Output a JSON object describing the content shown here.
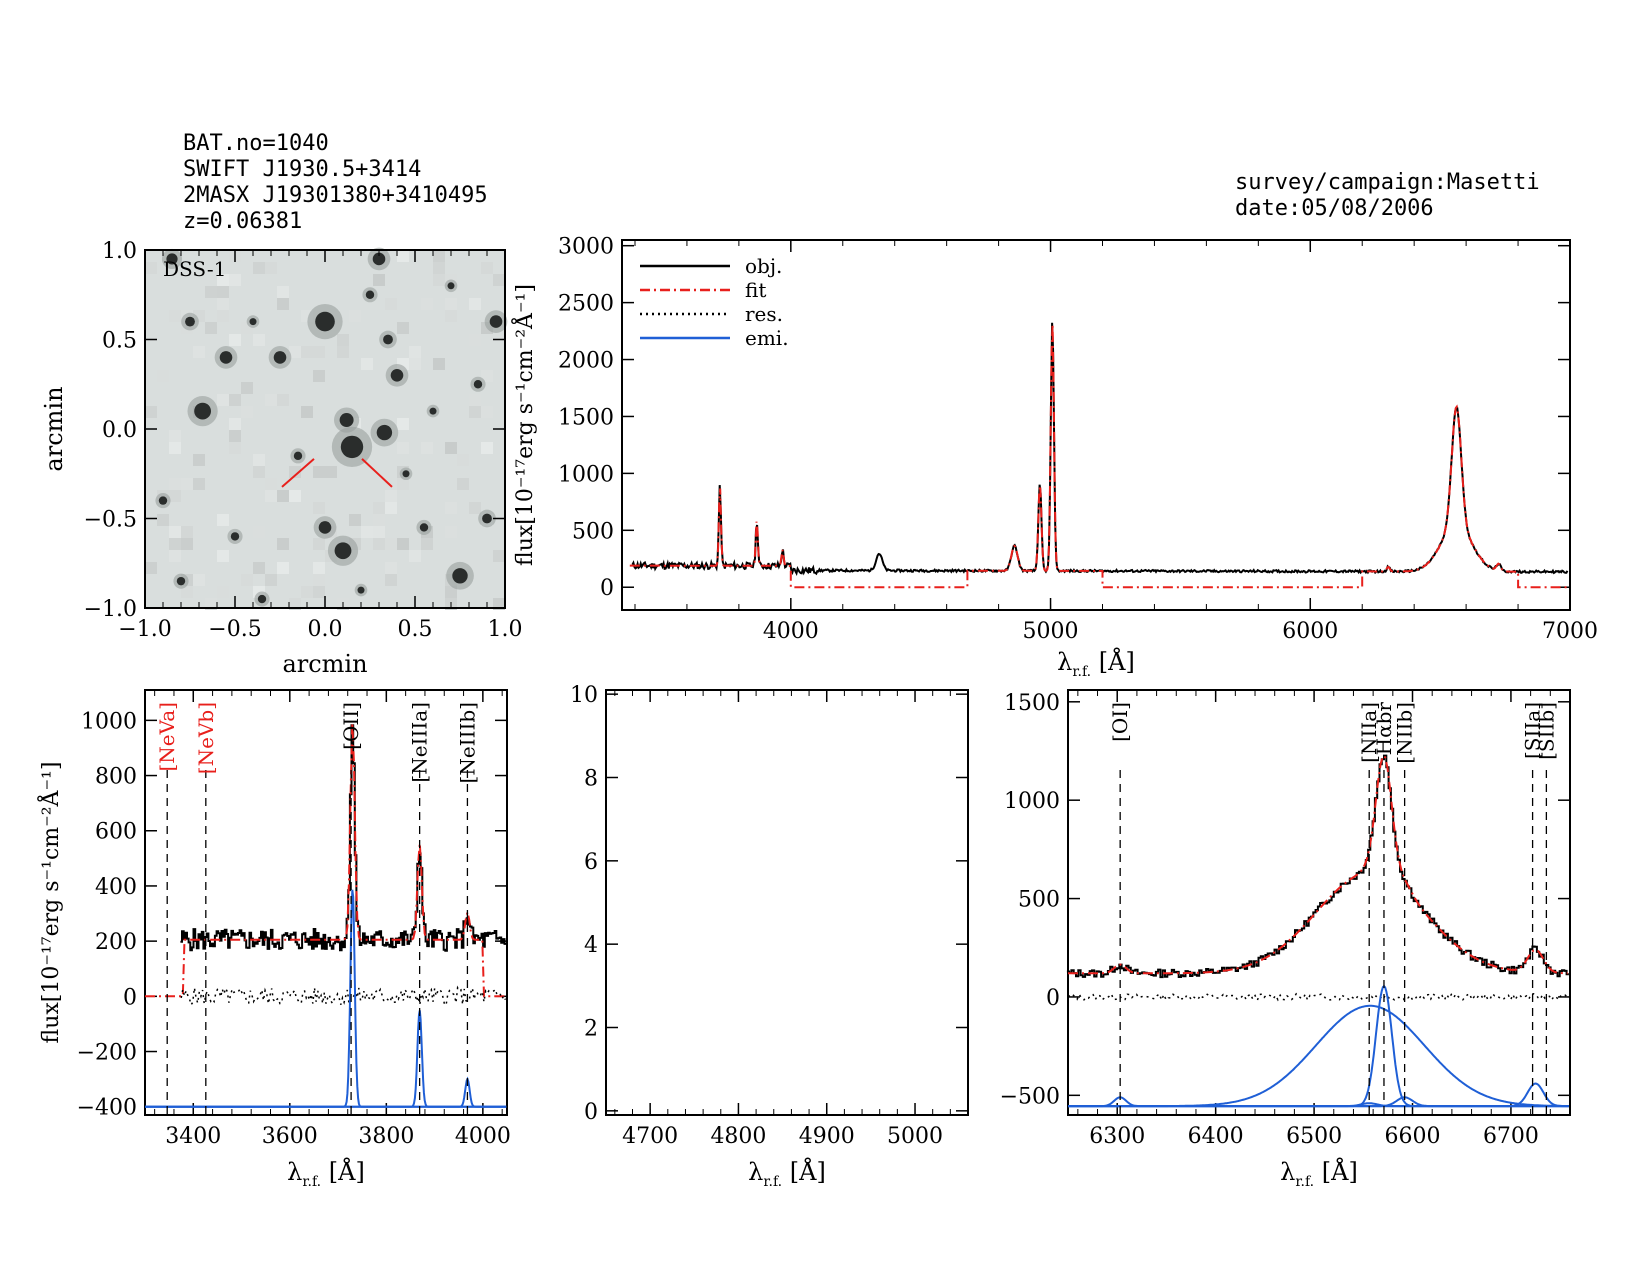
{
  "header_left": {
    "bat_no": "BAT.no=1040",
    "swift": "SWIFT J1930.5+3414",
    "twomass": "2MASX J19301380+3410495",
    "z": "z=0.06381"
  },
  "header_right": {
    "survey": "survey/campaign:Masetti",
    "date": "date:05/08/2006"
  },
  "colors": {
    "obj": "#000000",
    "fit": "#e8201c",
    "res": "#000000",
    "emi": "#1f5fd6",
    "label_red": "#e8201c"
  },
  "chart_data": [
    {
      "id": "dss",
      "type": "heatmap",
      "image_label": "DSS-1",
      "xlabel": "arcmin",
      "ylabel": "arcmin",
      "xlim": [
        -1.0,
        1.0
      ],
      "ylim": [
        -1.0,
        1.0
      ],
      "xticks": [
        "−1.0",
        "−0.5",
        "0.0",
        "0.5",
        "1.0"
      ],
      "yticks": [
        "−1.0",
        "−0.5",
        "0.0",
        "0.5",
        "1.0"
      ],
      "sources": [
        [
          0.0,
          0.6,
          1.4
        ],
        [
          0.15,
          -0.1,
          1.6
        ],
        [
          -0.68,
          0.1,
          1.2
        ],
        [
          0.4,
          0.3,
          0.9
        ],
        [
          0.33,
          -0.02,
          1.1
        ],
        [
          0.12,
          0.05,
          1.0
        ],
        [
          -0.25,
          0.4,
          0.9
        ],
        [
          -0.55,
          0.4,
          0.9
        ],
        [
          0.1,
          -0.68,
          1.2
        ],
        [
          0.0,
          -0.55,
          0.9
        ],
        [
          0.75,
          -0.82,
          1.1
        ],
        [
          0.95,
          0.6,
          0.9
        ],
        [
          0.3,
          0.95,
          0.9
        ],
        [
          -0.85,
          0.95,
          0.8
        ],
        [
          0.35,
          0.5,
          0.7
        ],
        [
          -0.75,
          0.6,
          0.7
        ],
        [
          0.55,
          -0.55,
          0.6
        ],
        [
          -0.5,
          -0.6,
          0.6
        ],
        [
          0.9,
          -0.5,
          0.7
        ],
        [
          -0.9,
          -0.4,
          0.6
        ],
        [
          0.6,
          0.1,
          0.5
        ],
        [
          -0.15,
          -0.15,
          0.6
        ],
        [
          0.25,
          0.75,
          0.6
        ],
        [
          -0.35,
          -0.95,
          0.6
        ],
        [
          0.85,
          0.25,
          0.6
        ],
        [
          -0.4,
          0.6,
          0.5
        ],
        [
          0.2,
          -0.9,
          0.5
        ],
        [
          0.7,
          0.8,
          0.5
        ],
        [
          -0.8,
          -0.85,
          0.6
        ],
        [
          0.45,
          -0.25,
          0.5
        ]
      ]
    },
    {
      "id": "full",
      "type": "line",
      "xlabel": "λ",
      "xlabel_sub": "r.f.",
      "xlabel_unit": "[Å]",
      "ylabel": "flux[10⁻¹⁷erg s⁻¹cm⁻²Å⁻¹]",
      "xlim": [
        3350,
        7000
      ],
      "ylim": [
        -200,
        3050
      ],
      "xticks": [
        4000,
        5000,
        6000,
        7000
      ],
      "yticks": [
        0,
        500,
        1000,
        1500,
        2000,
        2500,
        3000
      ],
      "legend": [
        "obj.",
        "fit",
        "res.",
        "emi."
      ],
      "legend_position": "top-left",
      "continuum": 150,
      "lines": [
        [
          3727,
          700,
          4
        ],
        [
          3869,
          400,
          4
        ],
        [
          3968,
          140,
          4
        ],
        [
          4340,
          150,
          12
        ],
        [
          4861,
          220,
          12
        ],
        [
          4959,
          760,
          6
        ],
        [
          5007,
          2200,
          6
        ],
        [
          6300,
          40,
          6
        ],
        [
          6563,
          1050,
          18
        ],
        [
          6563,
          400,
          60
        ],
        [
          6725,
          60,
          8
        ]
      ],
      "fit_steps": [
        [
          3380,
          4000,
          150
        ],
        [
          4000,
          4680,
          0
        ],
        [
          4680,
          5200,
          150
        ],
        [
          5200,
          6200,
          0
        ],
        [
          6200,
          6800,
          150
        ],
        [
          6800,
          7000,
          0
        ]
      ]
    },
    {
      "id": "blue",
      "type": "line",
      "xlabel": "λ",
      "xlabel_sub": "r.f.",
      "xlabel_unit": "[Å]",
      "ylabel": "flux[10⁻¹⁷erg s⁻¹cm⁻²Å⁻¹]",
      "xlim": [
        3300,
        4050
      ],
      "ylim": [
        -430,
        1110
      ],
      "xticks": [
        3400,
        3600,
        3800,
        4000
      ],
      "yticks": [
        -400,
        -200,
        0,
        200,
        400,
        600,
        800,
        1000
      ],
      "markers": [
        {
          "label": "[NeVa]",
          "x": 3346,
          "color": "red"
        },
        {
          "label": "[NeVb]",
          "x": 3426,
          "color": "red"
        },
        {
          "label": "[OII]",
          "x": 3727,
          "color": "black"
        },
        {
          "label": "[NeIIIa]",
          "x": 3869,
          "color": "black"
        },
        {
          "label": "[NeIIIb]",
          "x": 3968,
          "color": "black"
        }
      ],
      "continuum": 205,
      "emission": [
        [
          3730,
          790,
          4.5
        ],
        [
          3869,
          350,
          4.5
        ],
        [
          3968,
          100,
          4.5
        ]
      ],
      "emi_base": -400,
      "fit_range": [
        3380,
        4000
      ]
    },
    {
      "id": "hbeta",
      "type": "line",
      "xlabel": "λ",
      "xlabel_sub": "r.f.",
      "xlabel_unit": "[Å]",
      "xlim": [
        4650,
        5060
      ],
      "ylim": [
        -0.1,
        10.1
      ],
      "xticks": [
        4700,
        4800,
        4900,
        5000
      ],
      "yticks": [
        0,
        2,
        4,
        6,
        8,
        10
      ]
    },
    {
      "id": "halpha",
      "type": "line",
      "xlabel": "λ",
      "xlabel_sub": "r.f.",
      "xlabel_unit": "[Å]",
      "xlim": [
        6250,
        6760
      ],
      "ylim": [
        -600,
        1560
      ],
      "xticks": [
        6300,
        6400,
        6500,
        6600,
        6700
      ],
      "yticks": [
        -500,
        0,
        500,
        1000,
        1500
      ],
      "markers": [
        {
          "label": "[OI]",
          "x": 6303,
          "color": "black"
        },
        {
          "label": "[NIIa]",
          "x": 6556,
          "color": "black"
        },
        {
          "label": "Hαbr",
          "x": 6571,
          "color": "black"
        },
        {
          "label": "[NIIb]",
          "x": 6592,
          "color": "black"
        },
        {
          "label": "[SIIa]",
          "x": 6722,
          "color": "black"
        },
        {
          "label": "[SIIb]",
          "x": 6736,
          "color": "black"
        }
      ],
      "continuum": 120,
      "emission": [
        [
          6303,
          45,
          6
        ],
        [
          6557,
          510,
          55
        ],
        [
          6571,
          610,
          8
        ],
        [
          6556,
          15,
          8
        ],
        [
          6592,
          45,
          8
        ],
        [
          6725,
          115,
          8
        ]
      ],
      "emi_base": -555
    }
  ]
}
